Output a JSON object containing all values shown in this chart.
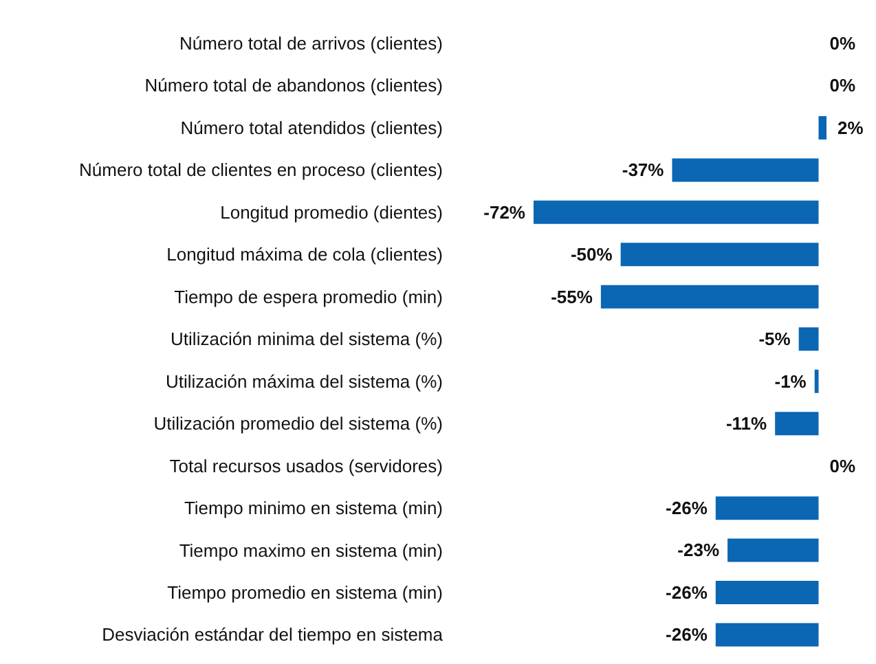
{
  "chart_data": {
    "type": "bar",
    "orientation": "horizontal",
    "categories": [
      "Número total de arrivos (clientes)",
      "Número total de abandonos (clientes)",
      "Número total atendidos (clientes)",
      "Número total de clientes en proceso (clientes)",
      "Longitud promedio (dientes)",
      "Longitud máxima de cola (clientes)",
      "Tiempo de espera promedio (min)",
      "Utilización minima del sistema (%)",
      "Utilización máxima del sistema (%)",
      "Utilización promedio del sistema (%)",
      "Total recursos usados (servidores)",
      "Tiempo minimo en sistema (min)",
      "Tiempo maximo en sistema (min)",
      "Tiempo promedio en sistema (min)",
      "Desviación estándar del tiempo en sistema"
    ],
    "values": [
      0,
      0,
      2,
      -37,
      -72,
      -50,
      -55,
      -5,
      -1,
      -11,
      0,
      -26,
      -23,
      -26,
      -26
    ],
    "value_labels": [
      "0%",
      "0%",
      "2%",
      "-37%",
      "-72%",
      "-50%",
      "-55%",
      "-5%",
      "-1%",
      "-11%",
      "0%",
      "-26%",
      "-23%",
      "-26%",
      "-26%"
    ],
    "color": "#0b66b3",
    "grid": false,
    "legend": false
  }
}
